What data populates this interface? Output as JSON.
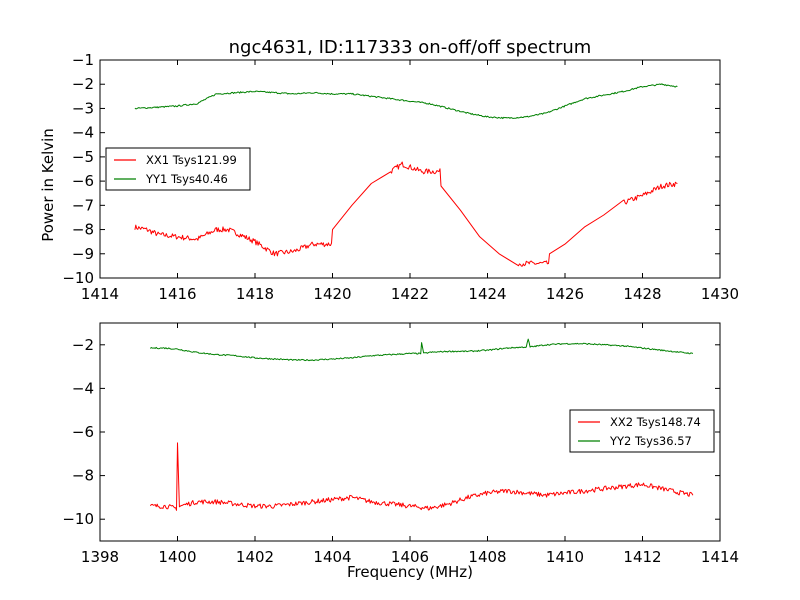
{
  "title": "ngc4631, ID:117333 on-off/off spectrum",
  "ylabel": "Power in Kelvin",
  "xlabel": "Frequency (MHz)",
  "chart_data": [
    {
      "type": "line",
      "title": "ngc4631, ID:117333 on-off/off spectrum",
      "xlabel": "",
      "ylabel": "Power in Kelvin",
      "xlim": [
        1414,
        1430
      ],
      "ylim": [
        -10,
        -1
      ],
      "xticks": [
        1414,
        1416,
        1418,
        1420,
        1422,
        1424,
        1426,
        1428,
        1430
      ],
      "yticks": [
        -10,
        -9,
        -8,
        -7,
        -6,
        -5,
        -4,
        -3,
        -2,
        -1
      ],
      "legend_position": "center-left",
      "grid": false,
      "series": [
        {
          "name": "XX1 Tsys121.99",
          "color": "#ff0000",
          "x": [
            1414.9,
            1415.2,
            1415.5,
            1416.0,
            1416.5,
            1417.0,
            1417.3,
            1417.6,
            1418.0,
            1418.5,
            1419.0,
            1419.5,
            1420.0,
            1420.5,
            1421.0,
            1421.5,
            1421.8,
            1422.3,
            1422.8,
            1423.3,
            1423.8,
            1424.3,
            1424.8,
            1425.2,
            1425.6,
            1426.0,
            1426.5,
            1427.0,
            1427.5,
            1428.0,
            1428.5,
            1428.9
          ],
          "values": [
            -7.9,
            -8.0,
            -8.2,
            -8.3,
            -8.4,
            -8.0,
            -8.0,
            -8.2,
            -8.5,
            -9.0,
            -8.9,
            -8.6,
            -8.0,
            -7.0,
            -6.1,
            -5.6,
            -5.3,
            -5.6,
            -6.2,
            -7.2,
            -8.3,
            -9.0,
            -9.4,
            -9.4,
            -9.0,
            -8.6,
            -7.9,
            -7.4,
            -6.9,
            -6.6,
            -6.2,
            -6.1
          ]
        },
        {
          "name": "YY1 Tsys40.46",
          "color": "#008000",
          "x": [
            1414.9,
            1415.5,
            1416.0,
            1416.5,
            1417.0,
            1417.5,
            1418.0,
            1418.5,
            1419.0,
            1419.5,
            1420.0,
            1420.5,
            1421.0,
            1421.5,
            1422.0,
            1422.5,
            1423.0,
            1423.5,
            1424.0,
            1424.5,
            1425.0,
            1425.5,
            1426.0,
            1426.5,
            1427.0,
            1427.5,
            1428.0,
            1428.5,
            1428.9
          ],
          "values": [
            -3.0,
            -2.95,
            -2.9,
            -2.8,
            -2.4,
            -2.35,
            -2.3,
            -2.35,
            -2.4,
            -2.35,
            -2.4,
            -2.4,
            -2.5,
            -2.6,
            -2.7,
            -2.8,
            -3.0,
            -3.2,
            -3.35,
            -3.4,
            -3.35,
            -3.2,
            -2.9,
            -2.6,
            -2.45,
            -2.3,
            -2.1,
            -2.0,
            -2.1
          ]
        }
      ]
    },
    {
      "type": "line",
      "title": "",
      "xlabel": "Frequency (MHz)",
      "ylabel": "",
      "xlim": [
        1398,
        1414
      ],
      "ylim": [
        -11,
        -1
      ],
      "xticks": [
        1398,
        1400,
        1402,
        1404,
        1406,
        1408,
        1410,
        1412,
        1414
      ],
      "yticks": [
        -10,
        -8,
        -6,
        -4,
        -2
      ],
      "legend_position": "center-right",
      "grid": false,
      "series": [
        {
          "name": "XX2 Tsys148.74",
          "color": "#ff0000",
          "x": [
            1399.3,
            1399.7,
            1399.95,
            1400.0,
            1400.05,
            1400.5,
            1401.0,
            1401.5,
            1402.0,
            1402.5,
            1403.0,
            1403.5,
            1404.0,
            1404.5,
            1405.0,
            1405.5,
            1406.0,
            1406.5,
            1407.0,
            1407.5,
            1408.0,
            1408.5,
            1409.0,
            1409.5,
            1410.0,
            1410.5,
            1411.0,
            1411.5,
            1412.0,
            1412.5,
            1413.0,
            1413.3
          ],
          "values": [
            -9.4,
            -9.4,
            -9.5,
            -6.5,
            -9.4,
            -9.2,
            -9.2,
            -9.3,
            -9.4,
            -9.4,
            -9.3,
            -9.2,
            -9.1,
            -9.0,
            -9.2,
            -9.3,
            -9.4,
            -9.5,
            -9.3,
            -9.0,
            -8.8,
            -8.7,
            -8.8,
            -8.9,
            -8.8,
            -8.7,
            -8.6,
            -8.5,
            -8.4,
            -8.6,
            -8.8,
            -8.9
          ]
        },
        {
          "name": "YY2 Tsys36.57",
          "color": "#008000",
          "x": [
            1399.3,
            1399.7,
            1400.0,
            1400.5,
            1401.0,
            1401.5,
            1402.0,
            1402.5,
            1403.0,
            1403.5,
            1404.0,
            1404.5,
            1405.0,
            1405.5,
            1406.0,
            1406.25,
            1406.3,
            1406.35,
            1406.5,
            1407.0,
            1407.5,
            1408.0,
            1408.5,
            1409.0,
            1409.05,
            1409.1,
            1409.5,
            1410.0,
            1410.5,
            1411.0,
            1411.5,
            1412.0,
            1412.5,
            1413.0,
            1413.3
          ],
          "values": [
            -2.15,
            -2.15,
            -2.2,
            -2.35,
            -2.45,
            -2.5,
            -2.6,
            -2.65,
            -2.7,
            -2.7,
            -2.65,
            -2.6,
            -2.5,
            -2.45,
            -2.4,
            -2.4,
            -1.9,
            -2.4,
            -2.35,
            -2.3,
            -2.3,
            -2.25,
            -2.15,
            -2.1,
            -1.75,
            -2.1,
            -2.0,
            -1.95,
            -1.95,
            -2.0,
            -2.05,
            -2.15,
            -2.25,
            -2.35,
            -2.4
          ]
        }
      ]
    }
  ]
}
